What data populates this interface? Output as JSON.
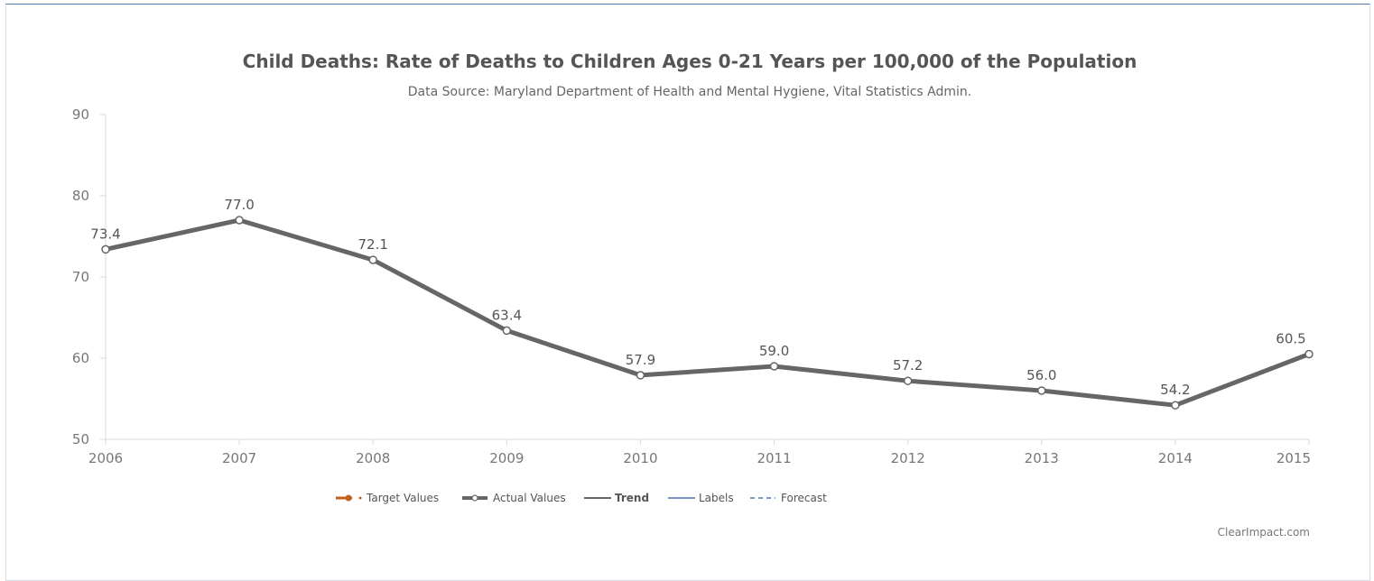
{
  "chart_data": {
    "type": "line",
    "title": "Child Deaths: Rate of Deaths to Children Ages 0-21 Years per 100,000 of the Population",
    "subtitle": "Data Source: Maryland Department of Health and Mental Hygiene, Vital Statistics Admin.",
    "categories": [
      "2006",
      "2007",
      "2008",
      "2009",
      "2010",
      "2011",
      "2012",
      "2013",
      "2014",
      "2015"
    ],
    "series": [
      {
        "name": "Actual Values",
        "values": [
          73.4,
          77.0,
          72.1,
          63.4,
          57.9,
          59.0,
          57.2,
          56.0,
          54.2,
          60.5
        ],
        "labels": [
          "73.4",
          "77.0",
          "72.1",
          "63.4",
          "57.9",
          "59.0",
          "57.2",
          "56.0",
          "54.2",
          "60.5"
        ],
        "color": "#666666"
      }
    ],
    "ylim": [
      50,
      90
    ],
    "yticks": [
      50,
      60,
      70,
      80,
      90
    ],
    "grid": false,
    "legend": {
      "placement": "bottom-center",
      "items": [
        {
          "label": "Target Values",
          "style": "marker-line",
          "color": "#c0601a",
          "bold": false
        },
        {
          "label": "Actual Values",
          "style": "marker-line",
          "color": "#666666",
          "bold": false
        },
        {
          "label": "Trend",
          "style": "line",
          "color": "#333333",
          "bold": true
        },
        {
          "label": "Labels",
          "style": "line",
          "color": "#4a6fa5",
          "bold": false
        },
        {
          "label": "Forecast",
          "style": "dashed",
          "color": "#4a78b0",
          "bold": false
        }
      ]
    },
    "credit": "ClearImpact.com"
  }
}
